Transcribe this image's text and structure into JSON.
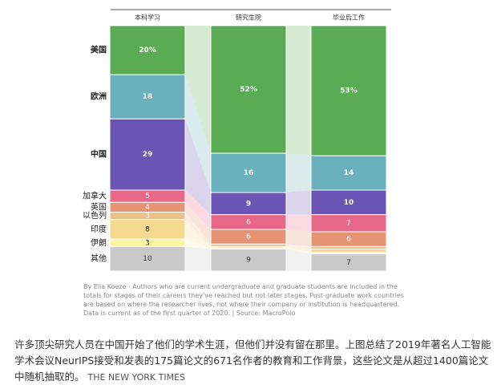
{
  "chart_data": {
    "type": "stacked-flow",
    "categories": [
      "本科学习",
      "研究生院",
      "毕业后工作"
    ],
    "ylim": [
      0,
      100
    ],
    "series": [
      {
        "name": "美国",
        "color": "#5aac54",
        "values": [
          20,
          52,
          53
        ],
        "value_labels": [
          "20%",
          "52%",
          "53%"
        ]
      },
      {
        "name": "欧洲",
        "color": "#6ab0bd",
        "values": [
          18,
          16,
          14
        ],
        "value_labels": [
          "18",
          "16",
          "14"
        ]
      },
      {
        "name": "中国",
        "color": "#6a55b5",
        "values": [
          29,
          9,
          10
        ],
        "value_labels": [
          "29",
          "9",
          "10"
        ]
      },
      {
        "name": "加拿大",
        "color": "#e8688a",
        "values": [
          5,
          6,
          7
        ],
        "value_labels": [
          "5",
          "6",
          "7"
        ]
      },
      {
        "name": "英国",
        "color": "#e69473",
        "values": [
          4,
          6,
          6
        ],
        "value_labels": [
          "4",
          "6",
          "6"
        ]
      },
      {
        "name": "以色列",
        "color": "#ecc08a",
        "values": [
          3,
          1,
          1
        ],
        "value_labels": [
          "3",
          null,
          null
        ]
      },
      {
        "name": "印度",
        "color": "#f5d98f",
        "values": [
          8,
          0.5,
          1.5
        ],
        "value_labels": [
          "8",
          null,
          null
        ]
      },
      {
        "name": "伊朗",
        "color": "#fbf5a2",
        "values": [
          3,
          0.5,
          0.5
        ],
        "value_labels": [
          "3",
          null,
          null
        ]
      },
      {
        "name": "其他",
        "color": "#c9c9c9",
        "values": [
          10,
          9,
          7
        ],
        "value_labels": [
          "10",
          "9",
          "7"
        ]
      }
    ],
    "note": "By Elia Koeze · Authors who are current undergraduate and graduate students are included in the totals for stages of their careers they've reached but not later stages. Post-graduate work countries are based on where the researcher lives, not where their company or institution is headquartered. Data is current as of the first quarter of 2020. | Source: MacroPolo"
  },
  "caption": "许多顶尖研究人员在中国开始了他们的学术生涯，但他们并没有留在那里。上图总结了2019年著名人工智能学术会议NeurIPS接受和发表的175篇论文的671名作者的教育和工作背景，这些论文是从超过1400篇论文中随机抽取的。",
  "credit": "THE NEW YORK TIMES"
}
